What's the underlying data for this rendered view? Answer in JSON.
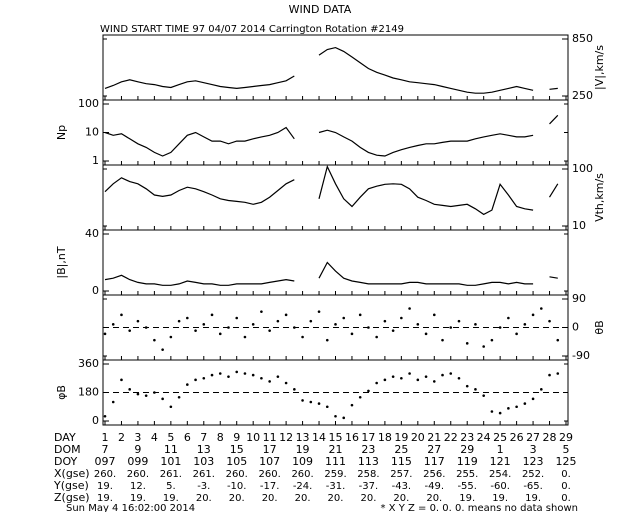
{
  "header": {
    "title": "WIND DATA",
    "subtitle": "WIND START TIME  97 04/07 2014 Carrington Rotation #2149"
  },
  "chart_data": [
    {
      "type": "line",
      "label": "|V|,km/s",
      "axis_side": "right",
      "log": false,
      "color": "#000000",
      "xlim": [
        1,
        29
      ],
      "ylim": [
        250,
        850
      ],
      "yticks": [
        250,
        850
      ],
      "x": [
        1,
        1.5,
        2,
        2.5,
        3,
        3.5,
        4,
        4.5,
        5,
        5.5,
        6,
        6.5,
        7,
        7.5,
        8,
        8.5,
        9,
        9.5,
        10,
        10.5,
        11,
        11.5,
        12,
        12.5,
        13,
        13.5,
        14,
        14.5,
        15,
        15.5,
        16,
        16.5,
        17,
        17.5,
        18,
        18.5,
        19,
        19.5,
        20,
        20.5,
        21,
        21.5,
        22,
        22.5,
        23,
        23.5,
        24,
        24.5,
        25,
        25.5,
        26,
        26.5,
        27,
        27.5,
        28,
        28.5
      ],
      "values": [
        330,
        360,
        400,
        420,
        400,
        380,
        370,
        350,
        340,
        370,
        400,
        410,
        390,
        370,
        350,
        340,
        330,
        340,
        350,
        360,
        370,
        390,
        410,
        460,
        null,
        null,
        680,
        740,
        760,
        720,
        660,
        600,
        540,
        500,
        470,
        440,
        420,
        400,
        390,
        380,
        370,
        350,
        330,
        310,
        290,
        280,
        280,
        290,
        310,
        330,
        350,
        330,
        310,
        null,
        320,
        330
      ]
    },
    {
      "type": "line",
      "label": "Np",
      "axis_side": "left",
      "log": true,
      "color": "#000000",
      "xlim": [
        1,
        29
      ],
      "ylim": [
        1,
        100
      ],
      "yticks": [
        1,
        10,
        100
      ],
      "x": [
        1,
        1.5,
        2,
        2.5,
        3,
        3.5,
        4,
        4.5,
        5,
        5.5,
        6,
        6.5,
        7,
        7.5,
        8,
        8.5,
        9,
        9.5,
        10,
        10.5,
        11,
        11.5,
        12,
        12.5,
        13,
        13.5,
        14,
        14.5,
        15,
        15.5,
        16,
        16.5,
        17,
        17.5,
        18,
        18.5,
        19,
        19.5,
        20,
        20.5,
        21,
        21.5,
        22,
        22.5,
        23,
        23.5,
        24,
        24.5,
        25,
        25.5,
        26,
        26.5,
        27,
        27.5,
        28,
        28.5
      ],
      "values": [
        10,
        8,
        9,
        6,
        4,
        3,
        2,
        1.5,
        2,
        4,
        8,
        10,
        7,
        5,
        5,
        4,
        5,
        5,
        6,
        7,
        8,
        10,
        15,
        6,
        null,
        null,
        10,
        12,
        10,
        7,
        5,
        3,
        2,
        1.6,
        1.5,
        2,
        2.5,
        3,
        3.5,
        4,
        4,
        4.5,
        5,
        5,
        5,
        6,
        7,
        8,
        9,
        8,
        7,
        7,
        8,
        null,
        20,
        40
      ]
    },
    {
      "type": "line",
      "label": "Vth,km/s",
      "axis_side": "right",
      "log": true,
      "color": "#000000",
      "xlim": [
        1,
        29
      ],
      "ylim": [
        10,
        100
      ],
      "yticks": [
        10,
        100
      ],
      "x": [
        1,
        1.5,
        2,
        2.5,
        3,
        3.5,
        4,
        4.5,
        5,
        5.5,
        6,
        6.5,
        7,
        7.5,
        8,
        8.5,
        9,
        9.5,
        10,
        10.5,
        11,
        11.5,
        12,
        12.5,
        13,
        13.5,
        14,
        14.5,
        15,
        15.5,
        16,
        16.5,
        17,
        17.5,
        18,
        18.5,
        19,
        19.5,
        20,
        20.5,
        21,
        21.5,
        22,
        22.5,
        23,
        23.5,
        24,
        24.5,
        25,
        25.5,
        26,
        26.5,
        27,
        27.5,
        28,
        28.5
      ],
      "values": [
        40,
        55,
        70,
        60,
        55,
        45,
        35,
        33,
        35,
        42,
        48,
        45,
        40,
        35,
        30,
        28,
        27,
        26,
        24,
        26,
        32,
        42,
        55,
        65,
        null,
        null,
        30,
        110,
        55,
        30,
        22,
        32,
        45,
        50,
        54,
        55,
        54,
        45,
        32,
        28,
        24,
        23,
        22,
        23,
        24,
        20,
        16,
        19,
        54,
        35,
        22,
        20,
        19,
        null,
        32,
        55
      ]
    },
    {
      "type": "line",
      "label": "|B|,nT",
      "axis_side": "left",
      "log": false,
      "color": "#000000",
      "xlim": [
        1,
        29
      ],
      "ylim": [
        0,
        40
      ],
      "yticks": [
        0,
        40
      ],
      "x": [
        1,
        1.5,
        2,
        2.5,
        3,
        3.5,
        4,
        4.5,
        5,
        5.5,
        6,
        6.5,
        7,
        7.5,
        8,
        8.5,
        9,
        9.5,
        10,
        10.5,
        11,
        11.5,
        12,
        12.5,
        13,
        13.5,
        14,
        14.5,
        15,
        15.5,
        16,
        16.5,
        17,
        17.5,
        18,
        18.5,
        19,
        19.5,
        20,
        20.5,
        21,
        21.5,
        22,
        22.5,
        23,
        23.5,
        24,
        24.5,
        25,
        25.5,
        26,
        26.5,
        27,
        27.5,
        28,
        28.5
      ],
      "values": [
        8,
        9,
        11,
        8,
        6,
        5,
        5,
        4,
        4,
        5,
        7,
        6,
        5,
        5,
        4,
        4,
        5,
        5,
        5,
        5,
        6,
        7,
        8,
        7,
        null,
        null,
        9,
        20,
        14,
        9,
        7,
        6,
        5,
        5,
        5,
        5,
        5,
        6,
        6,
        5,
        5,
        5,
        5,
        5,
        4,
        4,
        5,
        6,
        6,
        5,
        6,
        5,
        5,
        null,
        10,
        9
      ]
    },
    {
      "type": "scatter",
      "label": "θB",
      "axis_side": "right",
      "log": false,
      "color": "#000000",
      "xlim": [
        1,
        29
      ],
      "ylim": [
        -90,
        90
      ],
      "yticks": [
        -90,
        0,
        90
      ],
      "reference_line": 0,
      "x": [
        1,
        1.5,
        2,
        2.5,
        3,
        3.5,
        4,
        4.5,
        5,
        5.5,
        6,
        6.5,
        7,
        7.5,
        8,
        8.5,
        9,
        9.5,
        10,
        10.5,
        11,
        11.5,
        12,
        12.5,
        13,
        13.5,
        14,
        14.5,
        15,
        15.5,
        16,
        16.5,
        17,
        17.5,
        18,
        18.5,
        19,
        19.5,
        20,
        20.5,
        21,
        21.5,
        22,
        22.5,
        23,
        23.5,
        24,
        24.5,
        25,
        25.5,
        26,
        26.5,
        27,
        27.5,
        28,
        28.5
      ],
      "values": [
        -20,
        10,
        40,
        -10,
        20,
        0,
        -40,
        -70,
        -30,
        20,
        30,
        -10,
        10,
        40,
        -20,
        0,
        30,
        -30,
        10,
        50,
        -10,
        20,
        40,
        0,
        -30,
        20,
        50,
        -40,
        10,
        30,
        -20,
        40,
        0,
        -30,
        20,
        -10,
        30,
        60,
        10,
        -20,
        40,
        -40,
        0,
        20,
        -50,
        10,
        -60,
        -40,
        0,
        30,
        -20,
        10,
        40,
        60,
        20,
        -40
      ]
    },
    {
      "type": "scatter",
      "label": "φB",
      "axis_side": "left",
      "log": false,
      "color": "#000000",
      "xlim": [
        1,
        29
      ],
      "ylim": [
        0,
        360
      ],
      "yticks": [
        0,
        180,
        360
      ],
      "reference_line": 180,
      "x": [
        1,
        1.5,
        2,
        2.5,
        3,
        3.5,
        4,
        4.5,
        5,
        5.5,
        6,
        6.5,
        7,
        7.5,
        8,
        8.5,
        9,
        9.5,
        10,
        10.5,
        11,
        11.5,
        12,
        12.5,
        13,
        13.5,
        14,
        14.5,
        15,
        15.5,
        16,
        16.5,
        17,
        17.5,
        18,
        18.5,
        19,
        19.5,
        20,
        20.5,
        21,
        21.5,
        22,
        22.5,
        23,
        23.5,
        24,
        24.5,
        25,
        25.5,
        26,
        26.5,
        27,
        27.5,
        28,
        28.5
      ],
      "values": [
        30,
        120,
        260,
        200,
        170,
        160,
        180,
        140,
        90,
        150,
        230,
        260,
        270,
        290,
        300,
        280,
        310,
        300,
        290,
        270,
        250,
        280,
        240,
        200,
        130,
        120,
        110,
        90,
        30,
        20,
        100,
        150,
        190,
        240,
        260,
        280,
        270,
        300,
        260,
        280,
        250,
        290,
        300,
        270,
        220,
        200,
        160,
        60,
        50,
        80,
        90,
        110,
        140,
        200,
        290,
        300
      ]
    }
  ],
  "time_axis": {
    "rows": [
      {
        "label": "DAY",
        "values": [
          1,
          2,
          3,
          4,
          5,
          6,
          7,
          8,
          9,
          10,
          11,
          12,
          13,
          14,
          15,
          16,
          17,
          18,
          19,
          20,
          21,
          22,
          23,
          24,
          25,
          26,
          27,
          28,
          29
        ]
      },
      {
        "label": "DOM",
        "values": [
          "7",
          "9",
          "11",
          "13",
          "15",
          "17",
          "19",
          "21",
          "23",
          "25",
          "27",
          "29",
          "1",
          "3",
          "5"
        ]
      },
      {
        "label": "DOY",
        "values": [
          "097",
          "099",
          "101",
          "103",
          "105",
          "107",
          "109",
          "111",
          "113",
          "115",
          "117",
          "119",
          "121",
          "123",
          "125"
        ]
      },
      {
        "label": "X(gse)",
        "values": [
          "260.",
          "260.",
          "261.",
          "261.",
          "260.",
          "260.",
          "260.",
          "259.",
          "258.",
          "257.",
          "256.",
          "255.",
          "254.",
          "252.",
          "0."
        ]
      },
      {
        "label": "Y(gse)",
        "values": [
          "19.",
          "12.",
          "5.",
          "-3.",
          "-10.",
          "-17.",
          "-24.",
          "-31.",
          "-37.",
          "-43.",
          "-49.",
          "-55.",
          "-60.",
          "-65.",
          "0."
        ]
      },
      {
        "label": "Z(gse)",
        "values": [
          "19.",
          "19.",
          "19.",
          "20.",
          "20.",
          "20.",
          "20.",
          "20.",
          "20.",
          "20.",
          "20.",
          "19.",
          "19.",
          "19.",
          "0."
        ]
      }
    ]
  },
  "footer": {
    "date": "Sun May  4 16:02:00 2014",
    "note": "* X Y Z = 0. 0. 0. means no data shown"
  }
}
